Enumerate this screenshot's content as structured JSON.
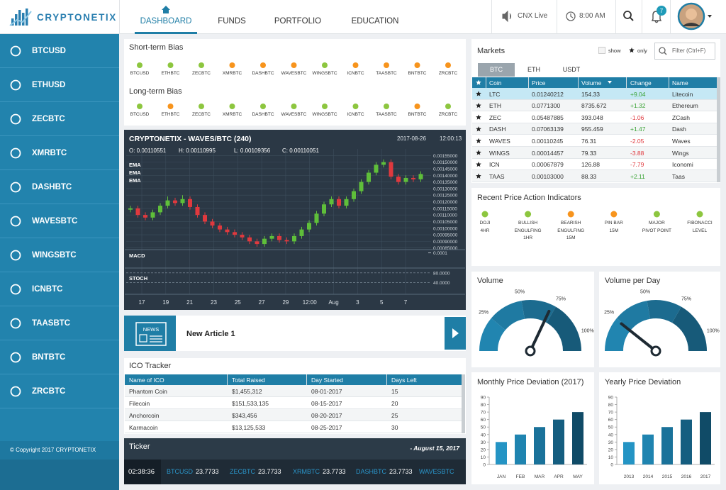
{
  "header": {
    "brand": "CRYPTONETIX",
    "nav": [
      "DASHBOARD",
      "FUNDS",
      "PORTFOLIO",
      "EDUCATION"
    ],
    "live": "CNX Live",
    "time": "8:00 AM",
    "notifications": "7"
  },
  "sidebar": {
    "items": [
      "BTCUSD",
      "ETHUSD",
      "ZECBTC",
      "XMRBTC",
      "DASHBTC",
      "WAVESBTC",
      "WINGSBTC",
      "ICNBTC",
      "TAASBTC",
      "BNTBTC",
      "ZRCBTC"
    ],
    "copyright": "© Copyright 2017 CRYPTONETIX"
  },
  "bias": [
    {
      "title": "Short-term Bias",
      "pairs": [
        "BTCUSD",
        "ETHBTC",
        "ZECBTC",
        "XMRBTC",
        "DASHBTC",
        "WAVESBTC",
        "WINGSBTC",
        "ICNBTC",
        "TAASBTC",
        "BNTBTC",
        "ZRCBTC"
      ],
      "colors": [
        "#8dc63f",
        "#8dc63f",
        "#8dc63f",
        "#f7941d",
        "#f7941d",
        "#f7941d",
        "#8dc63f",
        "#f7941d",
        "#f7941d",
        "#f7941d",
        "#f7941d"
      ]
    },
    {
      "title": "Long-term Bias",
      "pairs": [
        "BTCUSD",
        "ETHBTC",
        "ZECBTC",
        "XMRBTC",
        "DASHBTC",
        "WAVESBTC",
        "WINGSBTC",
        "ICNBTC",
        "TAASBTC",
        "BNTBTC",
        "ZRCBTC"
      ],
      "colors": [
        "#8dc63f",
        "#f7941d",
        "#8dc63f",
        "#8dc63f",
        "#8dc63f",
        "#8dc63f",
        "#8dc63f",
        "#8dc63f",
        "#8dc63f",
        "#f7941d",
        "#8dc63f"
      ]
    }
  ],
  "price_chart": {
    "type": "candlestick",
    "title": "CRYPTONETIX - WAVES/BTC (240)",
    "date": "2017-08-26",
    "time": "12:00:13",
    "ohlc_labels": [
      "O: 0.00110551",
      "H: 0.00110995",
      "L: 0.00109356",
      "C: 0.00110051"
    ],
    "indicator_labels": [
      "EMA",
      "EMA",
      "EMA"
    ],
    "candles": [
      [
        0.00114,
        0.00117,
        0.00112,
        0.00115
      ],
      [
        0.00115,
        0.00117,
        0.00108,
        0.0011
      ],
      [
        0.0011,
        0.00112,
        0.00106,
        0.00108
      ],
      [
        0.00108,
        0.00114,
        0.00106,
        0.00112
      ],
      [
        0.00112,
        0.00119,
        0.0011,
        0.00117
      ],
      [
        0.00117,
        0.00124,
        0.00115,
        0.00121
      ],
      [
        0.00121,
        0.00123,
        0.00117,
        0.00119
      ],
      [
        0.00119,
        0.00125,
        0.00117,
        0.00122
      ],
      [
        0.00122,
        0.00124,
        0.00114,
        0.00116
      ],
      [
        0.00116,
        0.00118,
        0.00108,
        0.0011
      ],
      [
        0.0011,
        0.00112,
        0.00103,
        0.00105
      ],
      [
        0.00105,
        0.00107,
        0.001,
        0.00102
      ],
      [
        0.00102,
        0.00104,
        0.00097,
        0.00099
      ],
      [
        0.00099,
        0.00101,
        0.00095,
        0.00097
      ],
      [
        0.00097,
        0.00099,
        0.00093,
        0.00095
      ],
      [
        0.00095,
        0.00097,
        0.00091,
        0.00093
      ],
      [
        0.00093,
        0.00095,
        0.00088,
        0.0009
      ],
      [
        0.0009,
        0.00092,
        0.00086,
        0.00088
      ],
      [
        0.00088,
        0.00094,
        0.00086,
        0.00092
      ],
      [
        0.00092,
        0.00096,
        0.0009,
        0.00094
      ],
      [
        0.00094,
        0.00096,
        0.00089,
        0.00091
      ],
      [
        0.00091,
        0.00093,
        0.00088,
        0.0009
      ],
      [
        0.0009,
        0.00096,
        0.00088,
        0.00094
      ],
      [
        0.00094,
        0.00101,
        0.00092,
        0.00099
      ],
      [
        0.00099,
        0.00106,
        0.00097,
        0.00104
      ],
      [
        0.00104,
        0.00113,
        0.00102,
        0.00111
      ],
      [
        0.00111,
        0.0012,
        0.00109,
        0.00118
      ],
      [
        0.00118,
        0.00124,
        0.00116,
        0.00122
      ],
      [
        0.00122,
        0.00124,
        0.00115,
        0.00117
      ],
      [
        0.00117,
        0.00124,
        0.00115,
        0.00122
      ],
      [
        0.00122,
        0.0013,
        0.0012,
        0.00128
      ],
      [
        0.00128,
        0.00137,
        0.00126,
        0.00135
      ],
      [
        0.00135,
        0.00144,
        0.00133,
        0.00142
      ],
      [
        0.00142,
        0.0015,
        0.0014,
        0.00148
      ],
      [
        0.00148,
        0.00152,
        0.00146,
        0.0015
      ],
      [
        0.0015,
        0.00152,
        0.00137,
        0.00139
      ],
      [
        0.00139,
        0.00141,
        0.00133,
        0.00135
      ],
      [
        0.00135,
        0.0014,
        0.00133,
        0.00138
      ],
      [
        0.00138,
        0.0014,
        0.00135,
        0.00137
      ],
      [
        0.00137,
        0.00143,
        0.00135,
        0.00141
      ]
    ],
    "up_color": "#5fbf3a",
    "down_color": "#e0393e",
    "grid": true,
    "ylim": [
      0.0008,
      0.0016
    ],
    "yticks": [
      {
        "value": 0.00155,
        "label": "0.00155000"
      },
      {
        "value": 0.0015,
        "label": "0.00150000"
      },
      {
        "value": 0.00145,
        "label": "0.00145000"
      },
      {
        "value": 0.0014,
        "label": "0.00140000"
      },
      {
        "value": 0.00135,
        "label": "0.00135000"
      },
      {
        "value": 0.0013,
        "label": "0.00130000"
      },
      {
        "value": 0.00125,
        "label": "0.00125000"
      },
      {
        "value": 0.0012,
        "label": "0.00120000"
      },
      {
        "value": 0.00115,
        "label": "0.00115000"
      },
      {
        "value": 0.0011,
        "label": "0.00110000"
      },
      {
        "value": 0.00105,
        "label": "0.00105000"
      },
      {
        "value": 0.001,
        "label": "0.00100000"
      },
      {
        "value": 0.00095,
        "label": "0.00095000"
      },
      {
        "value": 0.0009,
        "label": "0.00090000"
      },
      {
        "value": 0.00085,
        "label": "0.00085000"
      }
    ],
    "xticks": [
      "17",
      "19",
      "21",
      "23",
      "25",
      "27",
      "29",
      "12:00",
      "Aug",
      "3",
      "5",
      "7"
    ],
    "macd": {
      "label": "MACD",
      "ylim": [
        -0.0003,
        0.00015
      ],
      "yticks": [
        0.0001
      ]
    },
    "stoch": {
      "label": "STOCH",
      "ylim": [
        0,
        100
      ],
      "yticks": [
        {
          "value": 80,
          "label": "80.0000"
        },
        {
          "value": 40,
          "label": "40.0000"
        }
      ]
    }
  },
  "article": {
    "badge": "NEWS",
    "title": "New Article 1"
  },
  "ico": {
    "title": "ICO Tracker",
    "columns": [
      "Name of ICO",
      "Total Raised",
      "Day Started",
      "Days Left"
    ],
    "rows": [
      [
        "Phantom Coin",
        "$1,455,312",
        "08-01-2017",
        "15"
      ],
      [
        "Filecoin",
        "$151,533,135",
        "08-15-2017",
        "20"
      ],
      [
        "Anchorcoin",
        "$343,456",
        "08-20-2017",
        "25"
      ],
      [
        "Karmacoin",
        "$13,125,533",
        "08-25-2017",
        "30"
      ]
    ]
  },
  "ticker": {
    "title": "Ticker",
    "date": "- August 15, 2017",
    "time": "02:38:36",
    "items": [
      {
        "pair": "BTCUSD",
        "price": "23.7733"
      },
      {
        "pair": "ZECBTC",
        "price": "23.7733"
      },
      {
        "pair": "XRMBTC",
        "price": "23.7733"
      },
      {
        "pair": "DASHBTC",
        "price": "23.7733"
      },
      {
        "pair": "WAVESBTC"
      }
    ]
  },
  "markets": {
    "title": "Markets",
    "show": "show",
    "only": "only",
    "filter": "Filter (Ctrl+F)",
    "tabs": [
      "BTC",
      "ETH",
      "USDT"
    ],
    "columns": [
      "Coin",
      "Price",
      "Volume",
      "Change",
      "Name"
    ],
    "rows": [
      [
        "LTC",
        "0.01240212",
        "154.33",
        "+9.04",
        "Litecoin"
      ],
      [
        "ETH",
        "0.0771300",
        "8735.672",
        "+1.32",
        "Ethereum"
      ],
      [
        "ZEC",
        "0.05487885",
        "393.048",
        "-1.06",
        "ZCash"
      ],
      [
        "DASH",
        "0.07063139",
        "955.459",
        "+1.47",
        "Dash"
      ],
      [
        "WAVES",
        "0.00110245",
        "76.31",
        "-2.05",
        "Waves"
      ],
      [
        "WINGS",
        "0.00014457",
        "79.33",
        "-3.88",
        "Wings"
      ],
      [
        "ICN",
        "0.00067879",
        "126.88",
        "-7.79",
        "Iconomi"
      ],
      [
        "TAAS",
        "0.00103000",
        "88.33",
        "+2.11",
        "Taas"
      ]
    ]
  },
  "indicators": {
    "title": "Recent Price Action Indicators",
    "items": [
      {
        "label": [
          "DOJI",
          "4HR"
        ],
        "color": "#8dc63f"
      },
      {
        "label": [
          "BULLISH",
          "ENGULFING",
          "1HR"
        ],
        "color": "#8dc63f"
      },
      {
        "label": [
          "BEARISH",
          "ENGULFING",
          "15M"
        ],
        "color": "#f7941d"
      },
      {
        "label": [
          "PIN BAR",
          "15M"
        ],
        "color": "#f7941d"
      },
      {
        "label": [
          "MAJOR",
          "PIVOT POINT"
        ],
        "color": "#8dc63f"
      },
      {
        "label": [
          "FIBONACCI",
          "LEVEL"
        ],
        "color": "#8dc63f"
      }
    ]
  },
  "gauges": [
    {
      "type": "gauge",
      "title": "Volume",
      "lim": [
        0,
        112.5
      ],
      "ticks": [
        {
          "value": 25,
          "label": "25%"
        },
        {
          "value": 50,
          "label": "50%"
        },
        {
          "value": 75,
          "label": "75%"
        },
        {
          "value": 100,
          "label": "100%"
        }
      ],
      "value": 72,
      "colors": [
        "#2185b0",
        "#1f7aa2",
        "#1c6b8f",
        "#175a79"
      ]
    },
    {
      "type": "gauge",
      "title": "Volume per Day",
      "lim": [
        0,
        112.5
      ],
      "ticks": [
        {
          "value": 25,
          "label": "25%"
        },
        {
          "value": 50,
          "label": "50%"
        },
        {
          "value": 75,
          "label": "75%"
        },
        {
          "value": 100,
          "label": "100%"
        }
      ],
      "value": 24,
      "colors": [
        "#2185b0",
        "#1f7aa2",
        "#1c6b8f",
        "#175a79"
      ]
    }
  ],
  "bar_charts": [
    {
      "type": "bar",
      "title": "Monthly Price Deviation (2017)",
      "categories": [
        "JAN",
        "FEB",
        "MAR",
        "APR",
        "MAY"
      ],
      "values": [
        30,
        40,
        50,
        60,
        70
      ],
      "colors": [
        "#2494c4",
        "#1f84b0",
        "#1a729a",
        "#155e80",
        "#104b67"
      ],
      "ylim": [
        0,
        90
      ],
      "yticks": [
        0,
        10,
        20,
        30,
        40,
        50,
        60,
        70,
        80,
        90
      ]
    },
    {
      "type": "bar",
      "title": "Yearly Price Deviation",
      "categories": [
        "2013",
        "2014",
        "2015",
        "2016",
        "2017"
      ],
      "values": [
        30,
        40,
        50,
        60,
        70
      ],
      "colors": [
        "#2494c4",
        "#1f84b0",
        "#1a729a",
        "#155e80",
        "#104b67"
      ],
      "ylim": [
        0,
        90
      ],
      "yticks": [
        0,
        10,
        20,
        30,
        40,
        50,
        60,
        70,
        80,
        90
      ]
    }
  ]
}
